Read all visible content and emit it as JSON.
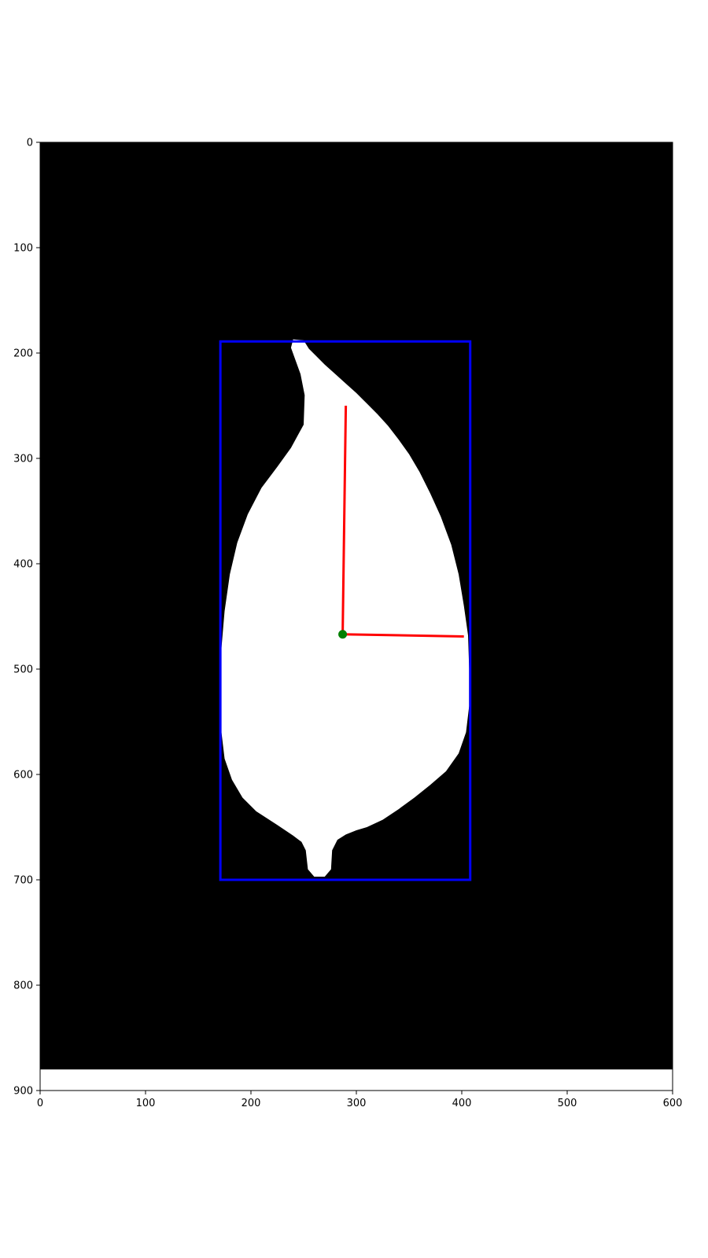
{
  "chart_data": {
    "type": "image",
    "xlim": [
      0,
      600
    ],
    "ylim": [
      900,
      0
    ],
    "y_inverted": true,
    "x_ticks": [
      0,
      100,
      200,
      300,
      400,
      500,
      600
    ],
    "y_ticks": [
      0,
      100,
      200,
      300,
      400,
      500,
      600,
      700,
      800,
      900
    ],
    "image_extent_y": [
      0,
      880
    ],
    "background_color": "#000000",
    "leaf_color": "#ffffff",
    "leaf_outline": [
      [
        240,
        187
      ],
      [
        250,
        188
      ],
      [
        255,
        196
      ],
      [
        262,
        203
      ],
      [
        270,
        211
      ],
      [
        280,
        220
      ],
      [
        290,
        229
      ],
      [
        300,
        238
      ],
      [
        310,
        248
      ],
      [
        320,
        258
      ],
      [
        330,
        269
      ],
      [
        340,
        282
      ],
      [
        350,
        296
      ],
      [
        360,
        313
      ],
      [
        370,
        333
      ],
      [
        380,
        355
      ],
      [
        390,
        382
      ],
      [
        397,
        410
      ],
      [
        402,
        440
      ],
      [
        406,
        468
      ],
      [
        407,
        500
      ],
      [
        407,
        535
      ],
      [
        404,
        560
      ],
      [
        397,
        580
      ],
      [
        385,
        597
      ],
      [
        370,
        610
      ],
      [
        355,
        622
      ],
      [
        340,
        633
      ],
      [
        325,
        643
      ],
      [
        310,
        650
      ],
      [
        300,
        653
      ],
      [
        290,
        657
      ],
      [
        282,
        662
      ],
      [
        277,
        672
      ],
      [
        276,
        690
      ],
      [
        270,
        697
      ],
      [
        260,
        697
      ],
      [
        254,
        690
      ],
      [
        252,
        672
      ],
      [
        248,
        664
      ],
      [
        240,
        658
      ],
      [
        225,
        648
      ],
      [
        205,
        635
      ],
      [
        192,
        622
      ],
      [
        182,
        605
      ],
      [
        175,
        585
      ],
      [
        172,
        560
      ],
      [
        171,
        530
      ],
      [
        172,
        480
      ],
      [
        175,
        445
      ],
      [
        180,
        410
      ],
      [
        187,
        380
      ],
      [
        197,
        353
      ],
      [
        210,
        328
      ],
      [
        225,
        308
      ],
      [
        238,
        290
      ],
      [
        250,
        268
      ],
      [
        251,
        240
      ],
      [
        247,
        220
      ],
      [
        238,
        195
      ]
    ],
    "bounding_box": {
      "x": [
        171,
        408
      ],
      "y": [
        189,
        700
      ],
      "color": "#0000ff"
    },
    "centroid": {
      "x": 287,
      "y": 467,
      "color": "#008000"
    },
    "axes_lines": [
      {
        "from": [
          287,
          467
        ],
        "to": [
          290,
          250
        ],
        "color": "#ff0000"
      },
      {
        "from": [
          287,
          467
        ],
        "to": [
          402,
          469
        ],
        "color": "#ff0000"
      }
    ]
  }
}
